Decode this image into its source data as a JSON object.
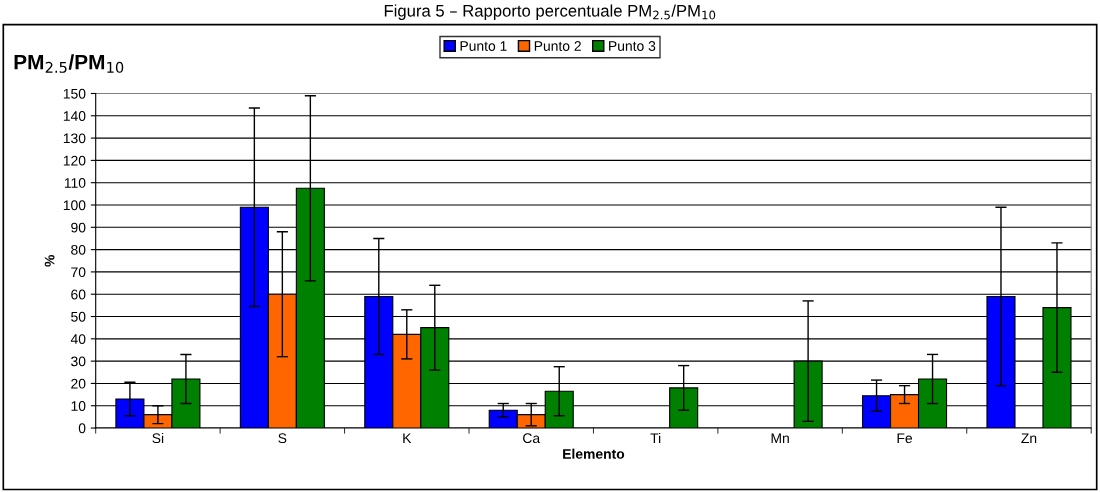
{
  "chart_data": {
    "type": "bar",
    "title": "PM$_{2.5}$/PM$_{10}$",
    "annotations": [
      "Figura 5 – Rapporto percentuale PM$_{2.5}$/PM$_{10}$"
    ],
    "xlabel": "Elemento",
    "ylabel": "%",
    "categories": [
      "Si",
      "S",
      "K",
      "Ca",
      "Ti",
      "Mn",
      "Fe",
      "Zn"
    ],
    "series": [
      {
        "name": "Punto 1",
        "color": "#0000ff",
        "values": [
          13,
          99,
          59,
          8,
          null,
          null,
          14.5,
          59
        ],
        "errors": [
          7.5,
          44.5,
          26,
          3,
          null,
          null,
          7,
          40
        ]
      },
      {
        "name": "Punto 2",
        "color": "#ff6600",
        "values": [
          6,
          60,
          42,
          6,
          null,
          null,
          15,
          null
        ],
        "errors": [
          4,
          28,
          11,
          5,
          null,
          null,
          4,
          null
        ]
      },
      {
        "name": "Punto 3",
        "color": "#008000",
        "values": [
          22,
          107.5,
          45,
          16.5,
          18,
          30,
          22,
          54
        ],
        "errors": [
          11,
          41.5,
          19,
          11,
          10,
          27,
          11,
          29
        ]
      }
    ],
    "ylim": [
      0,
      150
    ],
    "yticks": [
      0,
      10,
      20,
      30,
      40,
      50,
      60,
      70,
      80,
      90,
      100,
      110,
      120,
      130,
      140,
      150
    ],
    "grid": "y",
    "legend": "top"
  }
}
